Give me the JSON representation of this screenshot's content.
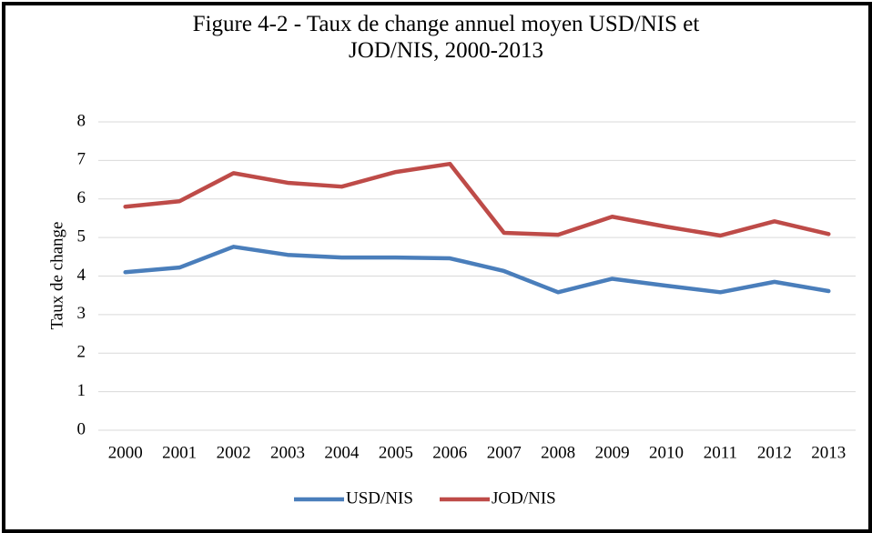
{
  "chart_data": {
    "type": "line",
    "title": "Figure 4-2 - Taux de change annuel moyen USD/NIS et JOD/NIS, 2000-2013",
    "y_label": "Taux de change",
    "categories": [
      "2000",
      "2001",
      "2002",
      "2003",
      "2004",
      "2005",
      "2006",
      "2007",
      "2008",
      "2009",
      "2010",
      "2011",
      "2012",
      "2013"
    ],
    "series": [
      {
        "name": "USD/NIS",
        "color": "#4a7ebb",
        "values": [
          4.1,
          4.22,
          4.76,
          4.55,
          4.48,
          4.48,
          4.46,
          4.13,
          3.58,
          3.93,
          3.75,
          3.58,
          3.85,
          3.61
        ]
      },
      {
        "name": "JOD/NIS",
        "color": "#be4b48",
        "values": [
          5.8,
          5.94,
          6.67,
          6.42,
          6.32,
          6.7,
          6.91,
          5.12,
          5.07,
          5.54,
          5.28,
          5.05,
          5.42,
          5.09
        ]
      }
    ],
    "ylim": [
      0,
      8
    ],
    "yticks": [
      0,
      1,
      2,
      3,
      4,
      5,
      6,
      7,
      8
    ],
    "grid": true,
    "legend": "bottom"
  }
}
